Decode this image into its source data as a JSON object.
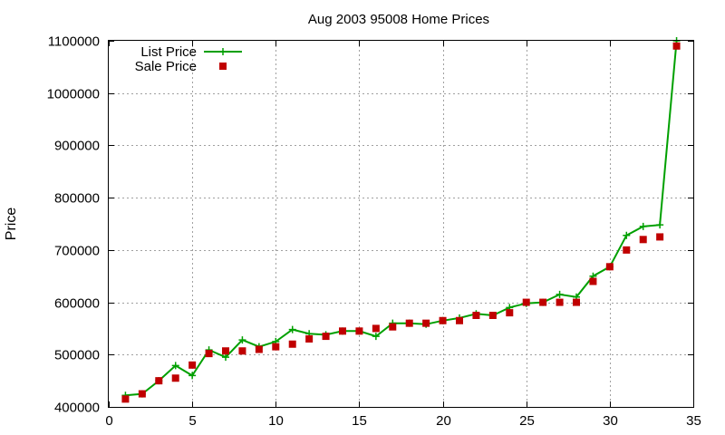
{
  "chart_data": {
    "type": "line",
    "title": "Aug 2003 95008 Home Prices",
    "xlabel": "",
    "ylabel": "Price",
    "xlim": [
      0,
      35
    ],
    "ylim": [
      400000,
      1100000
    ],
    "xticks": [
      "0",
      "5",
      "10",
      "15",
      "20",
      "25",
      "30",
      "35"
    ],
    "yticks": [
      "400000",
      "500000",
      "600000",
      "700000",
      "800000",
      "900000",
      "1000000",
      "1100000"
    ],
    "grid": true,
    "legend_position": "top-left",
    "series": [
      {
        "name": "List Price",
        "style": "line-with-plus-markers",
        "color": "#00a000",
        "x": [
          1,
          2,
          3,
          4,
          5,
          6,
          7,
          8,
          9,
          10,
          11,
          12,
          13,
          14,
          15,
          16,
          17,
          18,
          19,
          20,
          21,
          22,
          23,
          24,
          25,
          26,
          27,
          28,
          29,
          30,
          31,
          32,
          33,
          34
        ],
        "y": [
          422000,
          425000,
          450000,
          479000,
          460000,
          509000,
          495000,
          528000,
          515000,
          525000,
          548000,
          540000,
          538000,
          545000,
          545000,
          535000,
          560000,
          560000,
          558000,
          565000,
          570000,
          578000,
          575000,
          590000,
          598000,
          600000,
          615000,
          610000,
          650000,
          668000,
          728000,
          745000,
          748000,
          1100000
        ]
      },
      {
        "name": "Sale Price",
        "style": "square-markers",
        "color": "#c00000",
        "x": [
          1,
          2,
          3,
          4,
          5,
          6,
          7,
          8,
          9,
          10,
          11,
          12,
          13,
          14,
          15,
          16,
          17,
          18,
          19,
          20,
          21,
          22,
          23,
          24,
          25,
          26,
          27,
          28,
          29,
          30,
          31,
          32,
          33,
          34
        ],
        "y": [
          415000,
          425000,
          450000,
          455000,
          480000,
          502000,
          507000,
          507000,
          510000,
          515000,
          520000,
          530000,
          535000,
          545000,
          545000,
          550000,
          553000,
          560000,
          560000,
          565000,
          565000,
          575000,
          575000,
          580000,
          600000,
          600000,
          600000,
          600000,
          640000,
          668000,
          700000,
          720000,
          725000,
          1090000
        ]
      }
    ]
  }
}
